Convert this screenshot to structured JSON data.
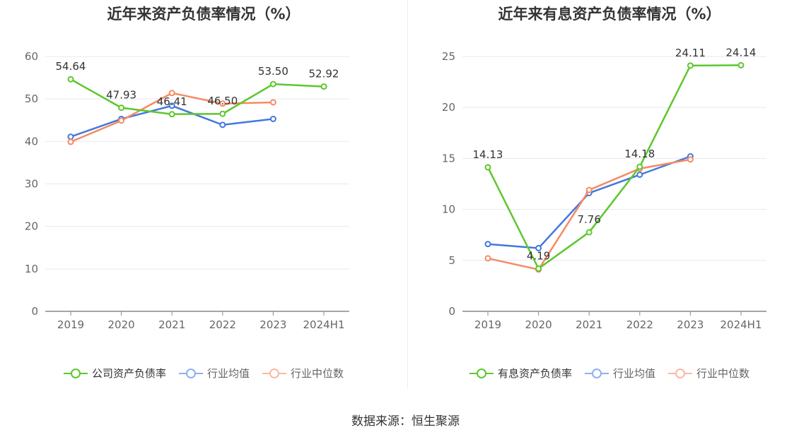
{
  "source_text": "数据来源：恒生聚源",
  "chart_data": [
    {
      "type": "line",
      "title": "近年来资产负债率情况（%）",
      "categories": [
        "2019",
        "2020",
        "2021",
        "2022",
        "2023",
        "2024H1"
      ],
      "ylim": [
        0,
        60
      ],
      "yticks": [
        "0",
        "10",
        "20",
        "30",
        "40",
        "50",
        "60"
      ],
      "grid": true,
      "legend_position": "bottom",
      "series": [
        {
          "name": "公司资产负债率",
          "color": "#5dc72d",
          "values": [
            54.64,
            47.93,
            46.41,
            46.5,
            53.5,
            52.92
          ],
          "labels": [
            "54.64",
            "47.93",
            "46.41",
            "46.50",
            "53.50",
            "52.92"
          ]
        },
        {
          "name": "行业均值",
          "color": "#4277de",
          "values": [
            41.1,
            45.3,
            48.4,
            43.9,
            45.3,
            null
          ],
          "labels": null
        },
        {
          "name": "行业中位数",
          "color": "#f58b62",
          "values": [
            39.9,
            44.9,
            51.4,
            48.9,
            49.2,
            null
          ],
          "labels": null
        }
      ]
    },
    {
      "type": "line",
      "title": "近年来有息资产负债率情况（%）",
      "categories": [
        "2019",
        "2020",
        "2021",
        "2022",
        "2023",
        "2024H1"
      ],
      "ylim": [
        0,
        25
      ],
      "yticks": [
        "0",
        "5",
        "10",
        "15",
        "20",
        "25"
      ],
      "grid": true,
      "legend_position": "bottom",
      "series": [
        {
          "name": "有息资产负债率",
          "color": "#5dc72d",
          "values": [
            14.13,
            4.19,
            7.76,
            14.18,
            24.11,
            24.14
          ],
          "labels": [
            "14.13",
            "4.19",
            "7.76",
            "14.18",
            "24.11",
            "24.14"
          ]
        },
        {
          "name": "行业均值",
          "color": "#4277de",
          "values": [
            6.6,
            6.2,
            11.6,
            13.4,
            15.2,
            null
          ],
          "labels": null
        },
        {
          "name": "行业中位数",
          "color": "#f58b62",
          "values": [
            5.2,
            4.1,
            11.9,
            14.0,
            14.9,
            null
          ],
          "labels": null
        }
      ]
    }
  ]
}
